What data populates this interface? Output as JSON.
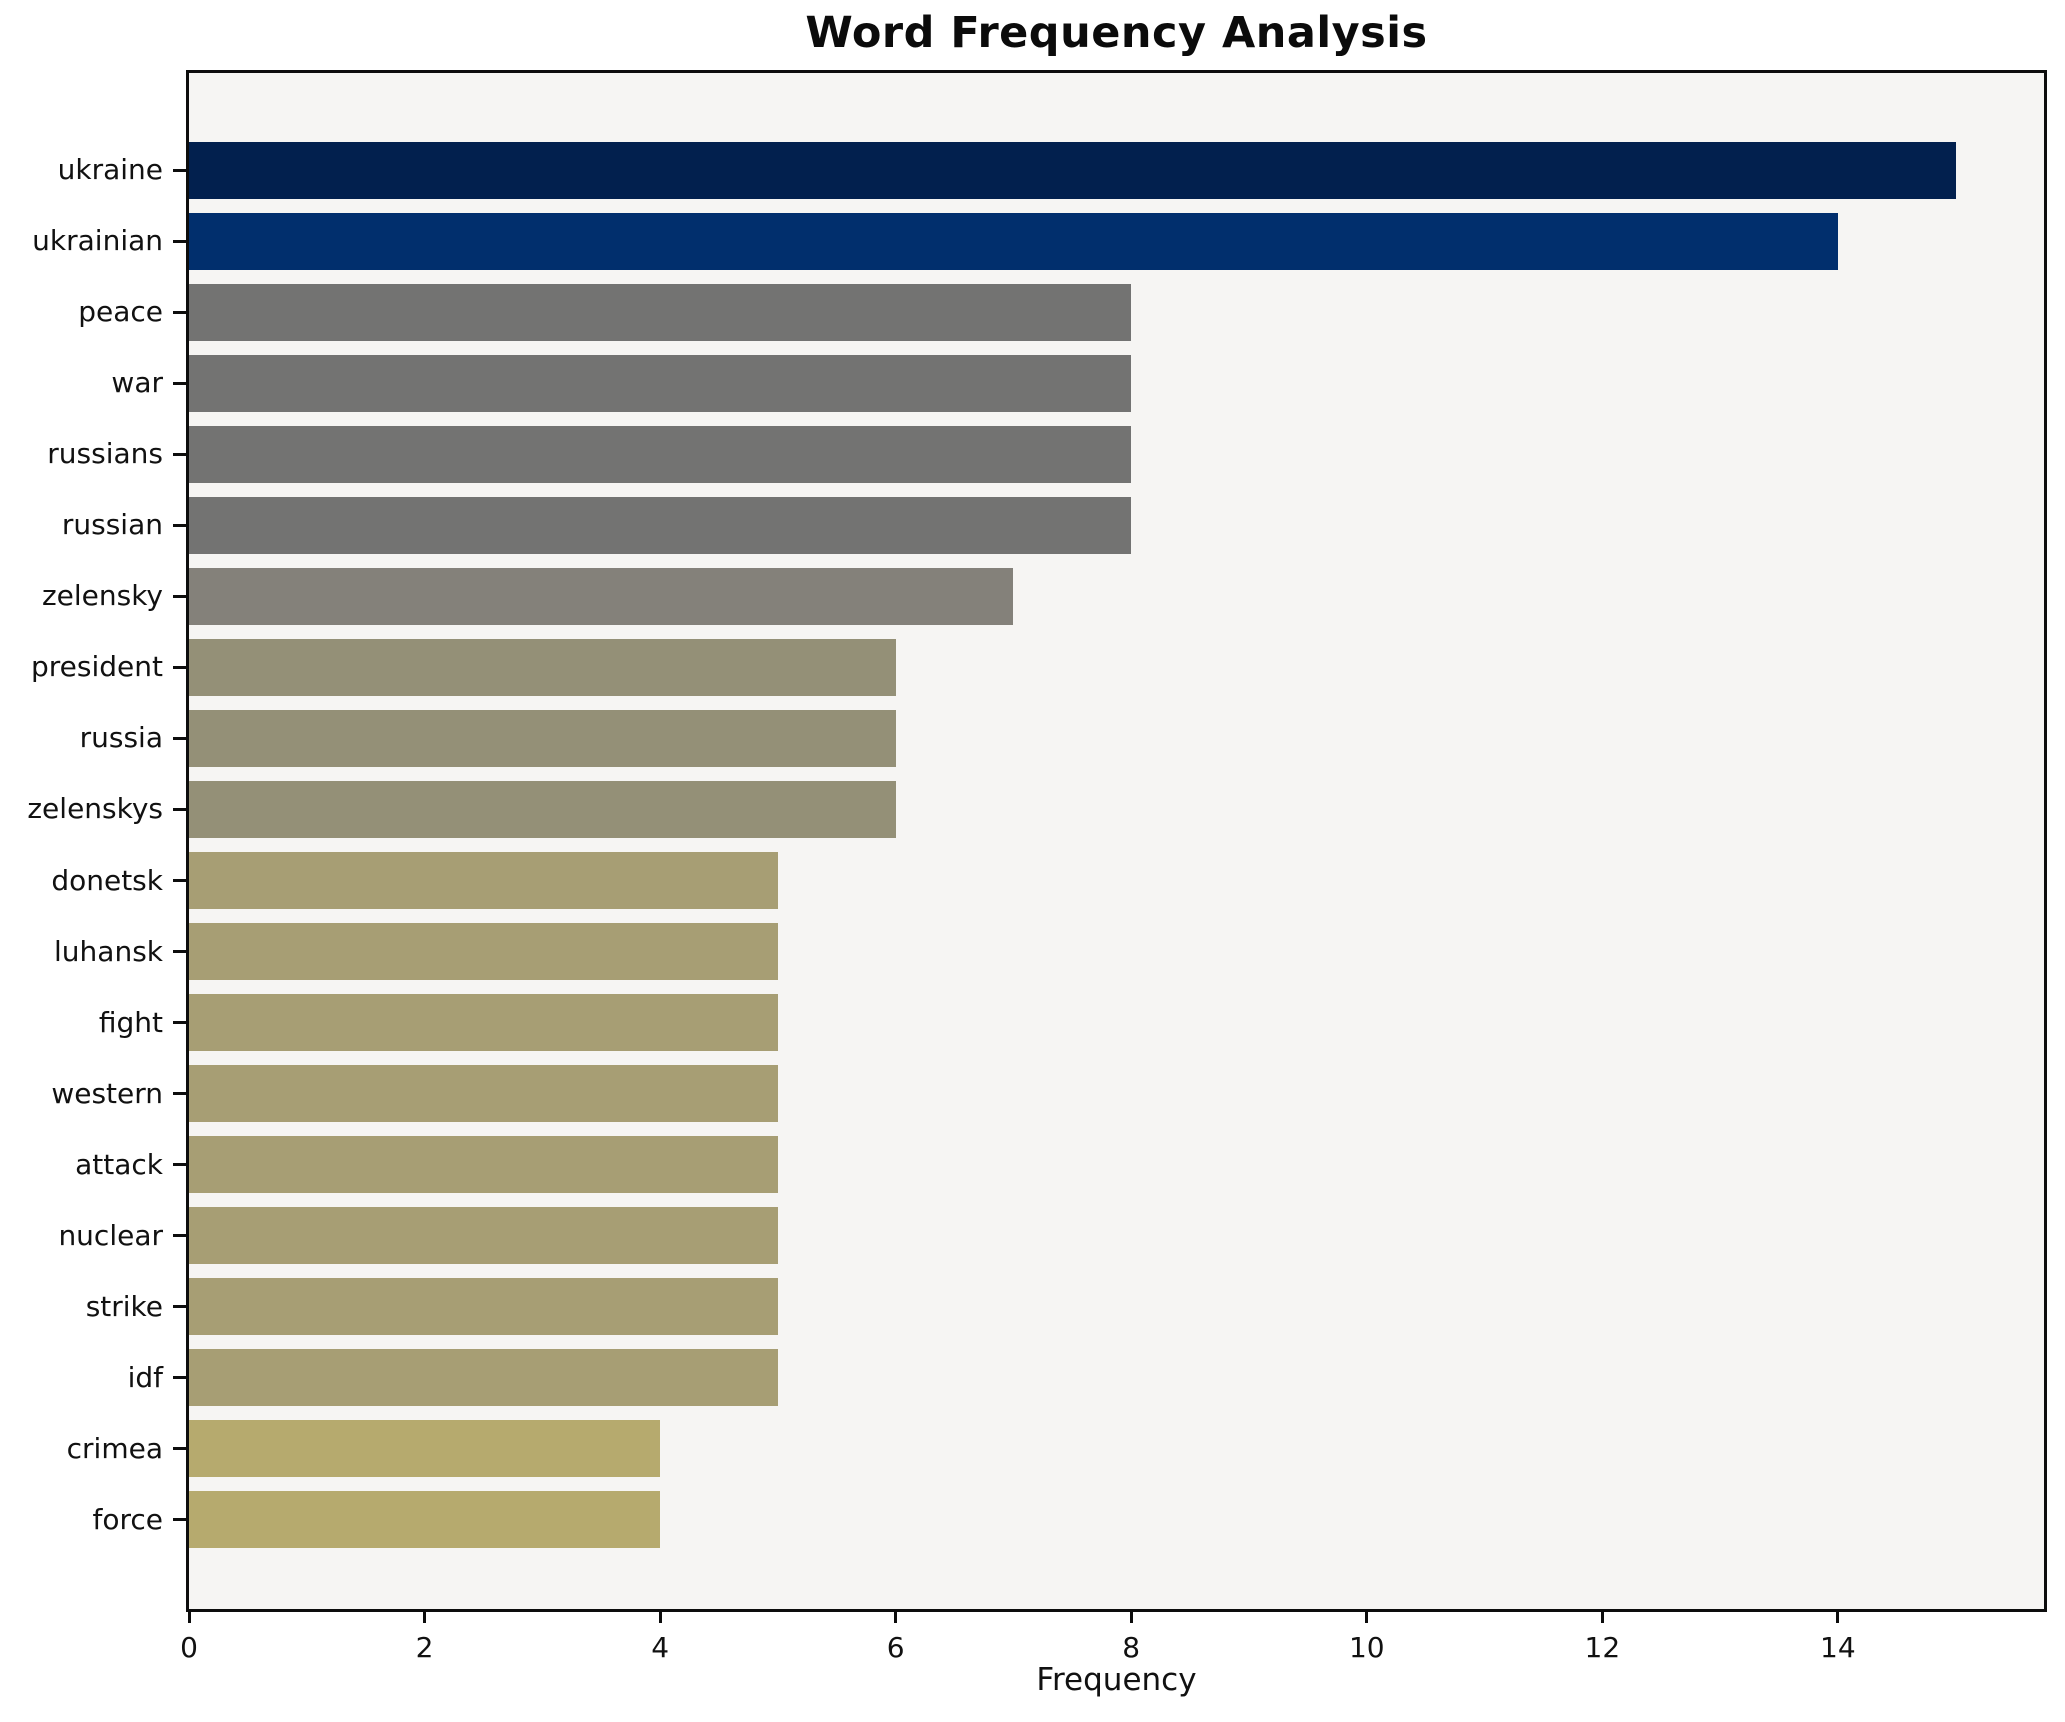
{
  "chart_data": {
    "type": "bar",
    "orientation": "horizontal",
    "title": "Word Frequency Analysis",
    "xlabel": "Frequency",
    "ylabel": "",
    "categories": [
      "ukraine",
      "ukrainian",
      "peace",
      "war",
      "russians",
      "russian",
      "zelensky",
      "president",
      "russia",
      "zelenskys",
      "donetsk",
      "luhansk",
      "fight",
      "western",
      "attack",
      "nuclear",
      "strike",
      "idf",
      "crimea",
      "force"
    ],
    "values": [
      15,
      14,
      8,
      8,
      8,
      8,
      7,
      6,
      6,
      6,
      5,
      5,
      5,
      5,
      5,
      5,
      5,
      5,
      4,
      4
    ],
    "bar_colors": [
      "#02204e",
      "#012f6d",
      "#737372",
      "#737372",
      "#737372",
      "#737372",
      "#84817a",
      "#949077",
      "#949077",
      "#949077",
      "#a79e74",
      "#a79e74",
      "#a79e74",
      "#a79e74",
      "#a79e74",
      "#a79e74",
      "#a79e74",
      "#a79e74",
      "#b6aa6e",
      "#b6aa6e"
    ],
    "xlim": [
      0,
      15.75
    ],
    "xticks": [
      0,
      2,
      4,
      6,
      8,
      10,
      12,
      14
    ],
    "grid": false,
    "legend": "none",
    "plot_background": "#f6f5f3",
    "spine_color": "#0d0d0d"
  }
}
